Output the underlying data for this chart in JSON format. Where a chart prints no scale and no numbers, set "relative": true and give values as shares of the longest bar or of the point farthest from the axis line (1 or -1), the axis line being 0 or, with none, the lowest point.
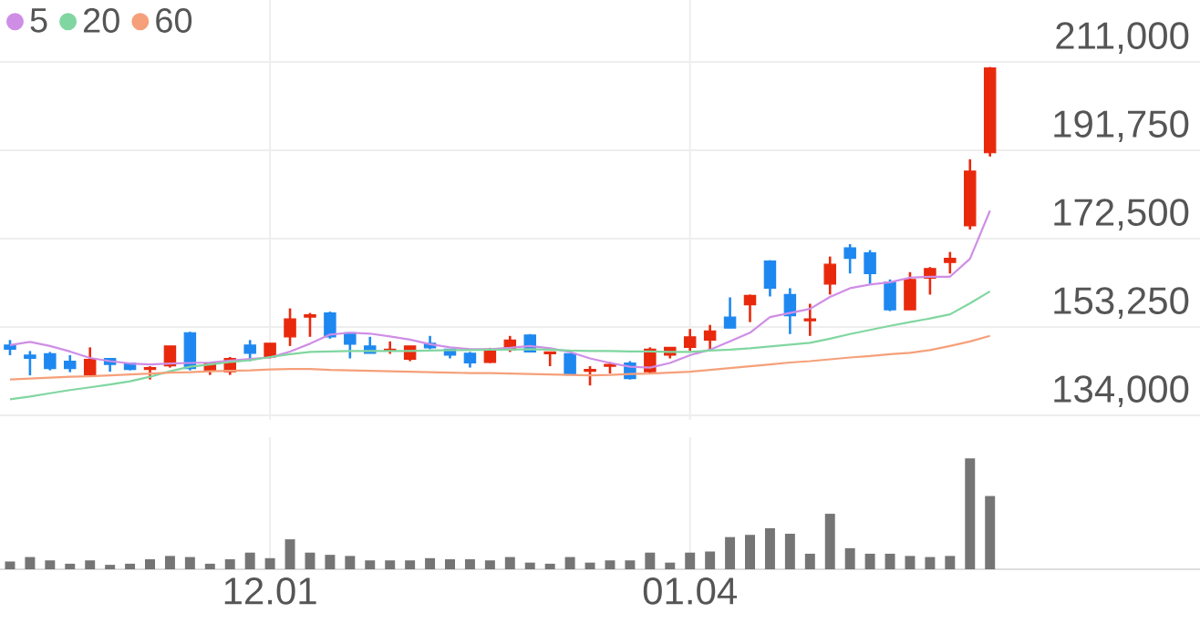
{
  "chart_data": [
    {
      "type": "candlestick",
      "categories": [
        null,
        null,
        null,
        null,
        null,
        null,
        null,
        null,
        null,
        null,
        null,
        null,
        null,
        "12.01",
        null,
        null,
        null,
        null,
        null,
        null,
        null,
        null,
        null,
        null,
        null,
        null,
        null,
        null,
        null,
        null,
        null,
        null,
        null,
        null,
        "01.04",
        null,
        null,
        null,
        null,
        null,
        null,
        null,
        null,
        null,
        null,
        null,
        null,
        null,
        null,
        null
      ],
      "ohlc": [
        [
          149300,
          150400,
          147100,
          148400
        ],
        [
          147100,
          148000,
          142700,
          146400
        ],
        [
          147400,
          147800,
          143800,
          144200
        ],
        [
          145800,
          147100,
          143400,
          144200
        ],
        [
          142800,
          148800,
          142800,
          146200
        ],
        [
          146400,
          146400,
          143500,
          145100
        ],
        [
          145400,
          145500,
          143800,
          144000
        ],
        [
          144000,
          144700,
          141800,
          144400
        ],
        [
          144800,
          149100,
          144400,
          149100
        ],
        [
          152000,
          152200,
          143800,
          144200
        ],
        [
          143800,
          145400,
          142800,
          145400
        ],
        [
          143500,
          146700,
          142800,
          146400
        ],
        [
          149300,
          150400,
          145800,
          147500
        ],
        [
          146700,
          149700,
          146400,
          149700
        ],
        [
          151100,
          157300,
          149100,
          155000
        ],
        [
          155400,
          156300,
          151100,
          155900
        ],
        [
          156300,
          156600,
          150700,
          151100
        ],
        [
          152000,
          152000,
          146400,
          149500
        ],
        [
          149100,
          151100,
          147500,
          147500
        ],
        [
          148200,
          150100,
          147400,
          148400
        ],
        [
          146200,
          149100,
          145800,
          149100
        ],
        [
          149700,
          151300,
          148400,
          148700
        ],
        [
          148400,
          148400,
          146400,
          147100
        ],
        [
          147500,
          147800,
          144400,
          145400
        ],
        [
          145500,
          148700,
          145400,
          148400
        ],
        [
          148200,
          151300,
          147800,
          150400
        ],
        [
          151500,
          151700,
          147800,
          147800
        ],
        [
          147400,
          147800,
          144700,
          147800
        ],
        [
          147400,
          147400,
          142800,
          142800
        ],
        [
          143600,
          144700,
          140500,
          144000
        ],
        [
          144700,
          145600,
          143100,
          145100
        ],
        [
          145400,
          145800,
          141800,
          142000
        ],
        [
          143500,
          148800,
          143100,
          148400
        ],
        [
          147100,
          148800,
          146400,
          148800
        ],
        [
          148800,
          152800,
          148000,
          151100
        ],
        [
          150400,
          153700,
          148400,
          152400
        ],
        [
          155400,
          159700,
          153000,
          153000
        ],
        [
          158100,
          160300,
          154300,
          160100
        ],
        [
          167600,
          167800,
          159900,
          161700
        ],
        [
          160300,
          161700,
          151700,
          155700
        ],
        [
          154600,
          158300,
          151300,
          155000
        ],
        [
          162600,
          168600,
          160300,
          166900
        ],
        [
          170500,
          171300,
          164900,
          168200
        ],
        [
          169400,
          170000,
          162600,
          164900
        ],
        [
          163000,
          163600,
          156700,
          157000
        ],
        [
          157000,
          165200,
          157000,
          163600
        ],
        [
          163900,
          166300,
          160300,
          166000
        ],
        [
          167300,
          169600,
          164900,
          168200
        ],
        [
          175300,
          189800,
          174500,
          187200
        ],
        [
          191200,
          209900,
          190400,
          209700
        ]
      ],
      "colors": [
        "#1e88f0",
        "#1e88f0",
        "#1e88f0",
        "#1e88f0",
        "#e8290c",
        "#1e88f0",
        "#1e88f0",
        "#e8290c",
        "#e8290c",
        "#1e88f0",
        "#e8290c",
        "#e8290c",
        "#1e88f0",
        "#e8290c",
        "#e8290c",
        "#e8290c",
        "#1e88f0",
        "#1e88f0",
        "#1e88f0",
        "#e8290c",
        "#e8290c",
        "#1e88f0",
        "#1e88f0",
        "#1e88f0",
        "#e8290c",
        "#e8290c",
        "#1e88f0",
        "#e8290c",
        "#1e88f0",
        "#e8290c",
        "#e8290c",
        "#1e88f0",
        "#e8290c",
        "#e8290c",
        "#e8290c",
        "#e8290c",
        "#1e88f0",
        "#e8290c",
        "#1e88f0",
        "#1e88f0",
        "#e8290c",
        "#e8290c",
        "#1e88f0",
        "#1e88f0",
        "#1e88f0",
        "#e8290c",
        "#e8290c",
        "#e8290c",
        "#e8290c",
        "#e8290c"
      ],
      "series": [
        {
          "type": "line",
          "name": "5",
          "color": "#cf8ee6",
          "values": [
            149300,
            150000,
            149100,
            147900,
            146500,
            145800,
            145300,
            145100,
            145300,
            145400,
            145500,
            145900,
            146300,
            146600,
            147900,
            149600,
            151600,
            152000,
            151800,
            151200,
            150500,
            149500,
            148800,
            148400,
            148400,
            148700,
            149100,
            148600,
            147800,
            146400,
            145400,
            144600,
            144400,
            145400,
            147100,
            148300,
            150100,
            152000,
            155400,
            156300,
            157200,
            159800,
            161700,
            162500,
            163000,
            164000,
            164200,
            164200,
            168100,
            178600
          ]
        },
        {
          "type": "line",
          "name": "20",
          "color": "#80d6a0",
          "values": [
            137500,
            138100,
            138800,
            139500,
            140100,
            140700,
            141400,
            142400,
            143600,
            144600,
            145100,
            145600,
            146000,
            146700,
            147300,
            147800,
            147900,
            148000,
            148000,
            148000,
            148000,
            148100,
            148200,
            148200,
            148300,
            148300,
            148400,
            148300,
            148100,
            148000,
            148000,
            147900,
            147900,
            147800,
            147800,
            148100,
            148300,
            148600,
            149000,
            149400,
            149800,
            150700,
            151700,
            152600,
            153500,
            154300,
            155100,
            156000,
            158400,
            161000
          ]
        },
        {
          "type": "line",
          "name": "60",
          "color": "#f5a07a",
          "values": [
            141800,
            142000,
            142200,
            142400,
            142500,
            142700,
            142900,
            143100,
            143300,
            143400,
            143600,
            143700,
            143800,
            144000,
            144100,
            144100,
            143900,
            143800,
            143700,
            143600,
            143500,
            143400,
            143300,
            143200,
            143200,
            143100,
            143000,
            142900,
            142800,
            142700,
            142800,
            143000,
            143100,
            143300,
            143500,
            143900,
            144300,
            144700,
            145100,
            145500,
            145800,
            146200,
            146600,
            146900,
            147300,
            147600,
            148200,
            149100,
            150100,
            151300
          ]
        }
      ],
      "ylim": [
        133000,
        224500
      ],
      "yticks": [
        {
          "value": 211000,
          "label": "211,000"
        },
        {
          "value": 191750,
          "label": "191,750"
        },
        {
          "value": 172500,
          "label": "172,500"
        },
        {
          "value": 153250,
          "label": "153,250"
        },
        {
          "value": 134000,
          "label": "134,000"
        }
      ],
      "grid": true,
      "legend": "top left",
      "tick_labels": "y"
    },
    {
      "type": "bar",
      "categories": [
        null,
        null,
        null,
        null,
        null,
        null,
        null,
        null,
        null,
        null,
        null,
        null,
        null,
        "12.01",
        null,
        null,
        null,
        null,
        null,
        null,
        null,
        null,
        null,
        null,
        null,
        null,
        null,
        null,
        null,
        null,
        null,
        null,
        null,
        null,
        "01.04",
        null,
        null,
        null,
        null,
        null,
        null,
        null,
        null,
        null,
        null,
        null,
        null,
        null,
        null,
        null
      ],
      "values": [
        0.07,
        0.11,
        0.08,
        0.05,
        0.08,
        0.04,
        0.05,
        0.09,
        0.12,
        0.11,
        0.05,
        0.09,
        0.15,
        0.1,
        0.27,
        0.15,
        0.13,
        0.12,
        0.08,
        0.08,
        0.08,
        0.1,
        0.09,
        0.09,
        0.08,
        0.11,
        0.06,
        0.05,
        0.11,
        0.06,
        0.08,
        0.08,
        0.15,
        0.06,
        0.15,
        0.16,
        0.29,
        0.31,
        0.37,
        0.32,
        0.14,
        0.5,
        0.19,
        0.14,
        0.14,
        0.12,
        0.11,
        0.12,
        1,
        0.66
      ],
      "color": "#757575",
      "relative": true,
      "grid": "x",
      "tick_labels": "x"
    }
  ]
}
